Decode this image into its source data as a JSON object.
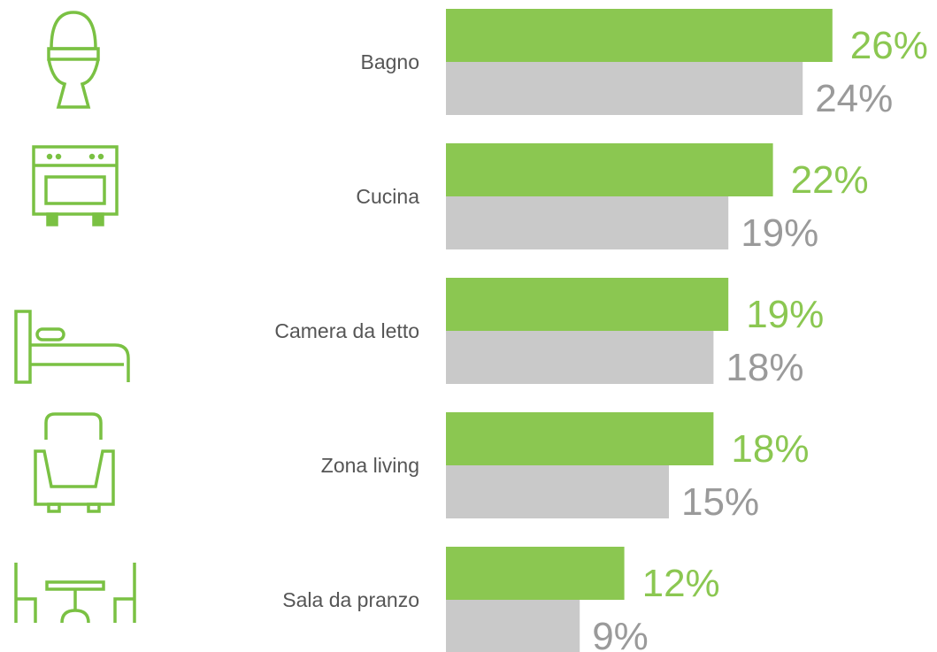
{
  "chart_data": {
    "type": "bar",
    "orientation": "horizontal",
    "categories": [
      "Bagno",
      "Cucina",
      "Camera da letto",
      "Zona living",
      "Sala da pranzo"
    ],
    "series": [
      {
        "color": "#8bc751",
        "values": [
          26,
          22,
          19,
          18,
          12
        ],
        "value_labels": [
          "26%",
          "22%",
          "19%",
          "18%",
          "12%"
        ]
      },
      {
        "color": "#c9c9c9",
        "values": [
          24,
          19,
          18,
          15,
          9
        ],
        "value_labels": [
          "24%",
          "19%",
          "18%",
          "15%",
          "9%"
        ]
      }
    ]
  }
}
